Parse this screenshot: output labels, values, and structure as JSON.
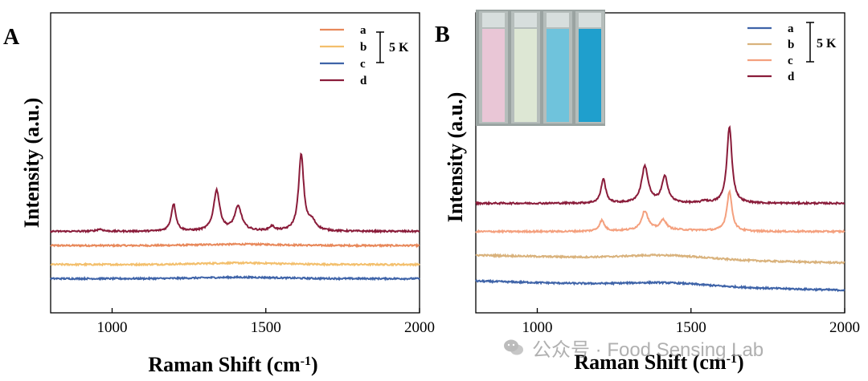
{
  "chart_data": [
    {
      "type": "line",
      "panel": "A",
      "xlabel": "Raman Shift (cm",
      "xlabel_sup": "-1",
      "xlabel_close": ")",
      "ylabel": "Intensity (a.u.)",
      "xlim": [
        800,
        2000
      ],
      "xticks": [
        1000,
        1500,
        2000
      ],
      "scale_bar": "5 K",
      "legend": [
        "a",
        "b",
        "c",
        "d"
      ],
      "colors": {
        "a": "#e8885a",
        "b": "#f3bf6c",
        "c": "#3e63a8",
        "d": "#8a1c3a"
      },
      "series": [
        {
          "name": "a",
          "baseline": 0.98,
          "bump": 0.03,
          "peaks": []
        },
        {
          "name": "b",
          "baseline": 0.55,
          "bump": 0.035,
          "peaks": []
        },
        {
          "name": "c",
          "baseline": 0.23,
          "bump": 0.03,
          "peaks": []
        },
        {
          "name": "d",
          "baseline": 1.3,
          "bump": 0.0,
          "peaks": [
            {
              "x": 960,
              "h": 0.05,
              "w": 12
            },
            {
              "x": 1200,
              "h": 0.62,
              "w": 9
            },
            {
              "x": 1340,
              "h": 0.92,
              "w": 12
            },
            {
              "x": 1410,
              "h": 0.55,
              "w": 14
            },
            {
              "x": 1520,
              "h": 0.1,
              "w": 10
            },
            {
              "x": 1615,
              "h": 1.72,
              "w": 10
            },
            {
              "x": 1650,
              "h": 0.2,
              "w": 16
            }
          ]
        }
      ]
    },
    {
      "type": "line",
      "panel": "B",
      "xlabel": "Raman Shift (cm",
      "xlabel_sup": "-1",
      "xlabel_close": ")",
      "ylabel": "Intensity (a.u.)",
      "xlim": [
        800,
        2000
      ],
      "xticks": [
        1000,
        1500,
        2000
      ],
      "scale_bar": "5 K",
      "legend": [
        "a",
        "b",
        "c",
        "d"
      ],
      "colors": {
        "a": "#3e63a8",
        "b": "#d9b27c",
        "c": "#f4a07e",
        "d": "#8a1c3a"
      },
      "series": [
        {
          "name": "a",
          "baseline": 0.08,
          "slope": -0.12,
          "bump": 0.04,
          "peaks": []
        },
        {
          "name": "b",
          "baseline": 0.42,
          "slope": -0.1,
          "bump": 0.05,
          "peaks": []
        },
        {
          "name": "c",
          "baseline": 0.73,
          "slope": 0.0,
          "bump": 0.02,
          "peaks": [
            {
              "x": 1210,
              "h": 0.14,
              "w": 10
            },
            {
              "x": 1350,
              "h": 0.25,
              "w": 13
            },
            {
              "x": 1410,
              "h": 0.13,
              "w": 12
            },
            {
              "x": 1625,
              "h": 0.52,
              "w": 10
            }
          ]
        },
        {
          "name": "d",
          "baseline": 1.1,
          "slope": 0.0,
          "bump": 0.0,
          "peaks": [
            {
              "x": 1215,
              "h": 0.32,
              "w": 9
            },
            {
              "x": 1350,
              "h": 0.48,
              "w": 13
            },
            {
              "x": 1415,
              "h": 0.34,
              "w": 12
            },
            {
              "x": 1545,
              "h": 0.03,
              "w": 10
            },
            {
              "x": 1625,
              "h": 1.0,
              "w": 10
            }
          ]
        }
      ]
    }
  ],
  "inset": {
    "vials": [
      "#e9c6d6",
      "#dde7d4",
      "#6fc3dc",
      "#1f9fcd"
    ],
    "bg": "#9aa3a1"
  },
  "watermark": {
    "text": "公众号 · Food Sensing Lab"
  }
}
